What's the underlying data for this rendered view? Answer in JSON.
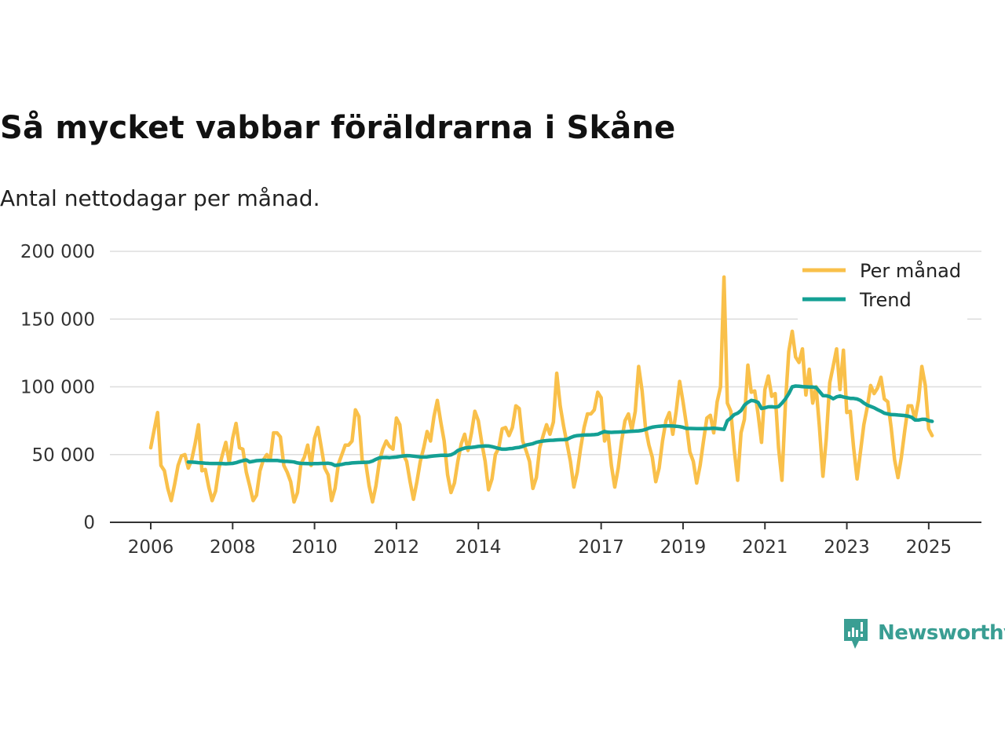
{
  "title": "Så mycket vabbar föräldrarna i Skåne",
  "subtitle": "Antal nettodagar per månad.",
  "brand": {
    "name": "Newsworthy",
    "icon": "newsworthy-logo-icon",
    "color": "#3a9e93"
  },
  "colors": {
    "monthly": "#f9c04a",
    "trend": "#14a094",
    "grid": "#dddddd",
    "axis": "#333333"
  },
  "chart_data": {
    "type": "line",
    "title": "Så mycket vabbar föräldrarna i Skåne",
    "subtitle": "Antal nettodagar per månad.",
    "xlabel": "",
    "ylabel": "",
    "ylim": [
      0,
      200000
    ],
    "xlim": [
      2006.0,
      2026.3
    ],
    "y_ticks": [
      0,
      50000,
      100000,
      150000,
      200000
    ],
    "y_tick_labels": [
      "0",
      "50 000",
      "100 000",
      "150 000",
      "200 000"
    ],
    "x_ticks": [
      2006,
      2008,
      2010,
      2012,
      2014,
      2017,
      2019,
      2021,
      2023,
      2025
    ],
    "x_tick_labels": [
      "2006",
      "2008",
      "2010",
      "2012",
      "2014",
      "2017",
      "2019",
      "2021",
      "2023",
      "2025"
    ],
    "grid": true,
    "legend_position": "top-right",
    "series": [
      {
        "name": "Per månad",
        "x_start": 2006.0,
        "x_step": 0.08333,
        "values": [
          55000,
          68000,
          81000,
          42000,
          38000,
          25000,
          16000,
          28000,
          42000,
          49000,
          50000,
          40000,
          46000,
          58000,
          72000,
          38000,
          39000,
          26000,
          16000,
          23000,
          40000,
          50000,
          59000,
          44000,
          62000,
          73000,
          55000,
          54000,
          37000,
          27000,
          16000,
          20000,
          38000,
          46000,
          50000,
          46000,
          66000,
          66000,
          63000,
          42000,
          37000,
          30000,
          15000,
          22000,
          43000,
          48000,
          57000,
          42000,
          62000,
          70000,
          55000,
          40000,
          35000,
          16000,
          25000,
          43000,
          50000,
          57000,
          57000,
          60000,
          83000,
          78000,
          45000,
          44000,
          27000,
          15000,
          27000,
          45000,
          54000,
          60000,
          56000,
          54000,
          77000,
          72000,
          50000,
          45000,
          30000,
          17000,
          30000,
          45000,
          55000,
          67000,
          60000,
          78000,
          90000,
          74000,
          60000,
          35000,
          22000,
          29000,
          45000,
          58000,
          65000,
          53000,
          66000,
          82000,
          75000,
          59000,
          45000,
          24000,
          32000,
          50000,
          55000,
          69000,
          70000,
          64000,
          70000,
          86000,
          84000,
          60000,
          53000,
          45000,
          25000,
          33000,
          55000,
          64000,
          72000,
          65000,
          74000,
          110000,
          86000,
          71000,
          58000,
          45000,
          26000,
          37000,
          55000,
          70000,
          80000,
          80000,
          83000,
          96000,
          92000,
          60000,
          66000,
          42000,
          26000,
          40000,
          60000,
          75000,
          80000,
          68000,
          82000,
          115000,
          97000,
          70000,
          57000,
          48000,
          30000,
          40000,
          60000,
          75000,
          81000,
          65000,
          82000,
          104000,
          89000,
          72000,
          52000,
          45000,
          29000,
          42000,
          60000,
          77000,
          79000,
          66000,
          89000,
          100000,
          181000,
          88000,
          82000,
          54000,
          31000,
          66000,
          76000,
          116000,
          96000,
          97000,
          80000,
          59000,
          98000,
          108000,
          93000,
          95000,
          55000,
          31000,
          87000,
          126000,
          141000,
          122000,
          118000,
          128000,
          94000,
          113000,
          88000,
          100000,
          70000,
          34000,
          62000,
          103000,
          115000,
          128000,
          98000,
          127000,
          81000,
          82000,
          55000,
          32000,
          52000,
          72000,
          85000,
          101000,
          95000,
          99000,
          107000,
          91000,
          89000,
          70000,
          46000,
          33000,
          48000,
          68000,
          86000,
          86000,
          76000,
          90000,
          115000,
          101000,
          69000,
          64000
        ]
      },
      {
        "name": "Trend",
        "x_start": 2006.917,
        "x_step": 0.08333,
        "values": [
          44500,
          44400,
          44300,
          44000,
          43800,
          43600,
          43500,
          43400,
          43400,
          43400,
          43300,
          43200,
          43300,
          43500,
          44000,
          44800,
          45500,
          46000,
          44500,
          45000,
          45500,
          45700,
          45800,
          45700,
          45700,
          45600,
          45700,
          45300,
          45000,
          45000,
          44800,
          44500,
          43800,
          43500,
          43400,
          43300,
          43200,
          43300,
          43300,
          43500,
          43500,
          43600,
          43200,
          42000,
          42300,
          42700,
          43300,
          43500,
          43800,
          44000,
          44100,
          44200,
          44300,
          44400,
          45200,
          46500,
          47600,
          47800,
          47900,
          47700,
          48000,
          48200,
          48600,
          49000,
          49200,
          49100,
          48800,
          48500,
          48300,
          48200,
          48300,
          48700,
          49000,
          49200,
          49400,
          49500,
          49400,
          49800,
          51000,
          53000,
          54000,
          54800,
          55200,
          55300,
          55600,
          56000,
          56200,
          56400,
          56300,
          55800,
          55200,
          54500,
          54000,
          54000,
          54300,
          54500,
          55000,
          55300,
          56000,
          57000,
          57500,
          58000,
          59000,
          59600,
          60000,
          60300,
          60500,
          60600,
          60800,
          60900,
          61000,
          61200,
          62500,
          63500,
          64000,
          64200,
          64400,
          64500,
          64600,
          64700,
          65000,
          66000,
          67000,
          66500,
          66400,
          66500,
          66600,
          66700,
          66800,
          67000,
          67200,
          67300,
          67500,
          67800,
          68500,
          69500,
          70200,
          70600,
          70900,
          71100,
          71200,
          71200,
          71100,
          70900,
          70600,
          70100,
          69300,
          69300,
          69200,
          69100,
          69100,
          69100,
          69200,
          69300,
          69400,
          69200,
          68900,
          68600,
          75000,
          77000,
          79500,
          80500,
          82500,
          86500,
          88500,
          90000,
          89500,
          88500,
          84000,
          84500,
          85200,
          85300,
          85000,
          85400,
          88000,
          91000,
          95000,
          100000,
          100600,
          100400,
          100200,
          100000,
          99900,
          99800,
          99500,
          96500,
          93500,
          93400,
          92700,
          91200,
          92600,
          93200,
          92500,
          92000,
          91500,
          91400,
          91000,
          90000,
          88000,
          86500,
          85500,
          84500,
          83200,
          82000,
          80500,
          80000,
          79500,
          79400,
          79200,
          79000,
          78800,
          78300,
          77500,
          75500,
          75500,
          76000,
          76000,
          75000,
          74500
        ]
      }
    ]
  }
}
